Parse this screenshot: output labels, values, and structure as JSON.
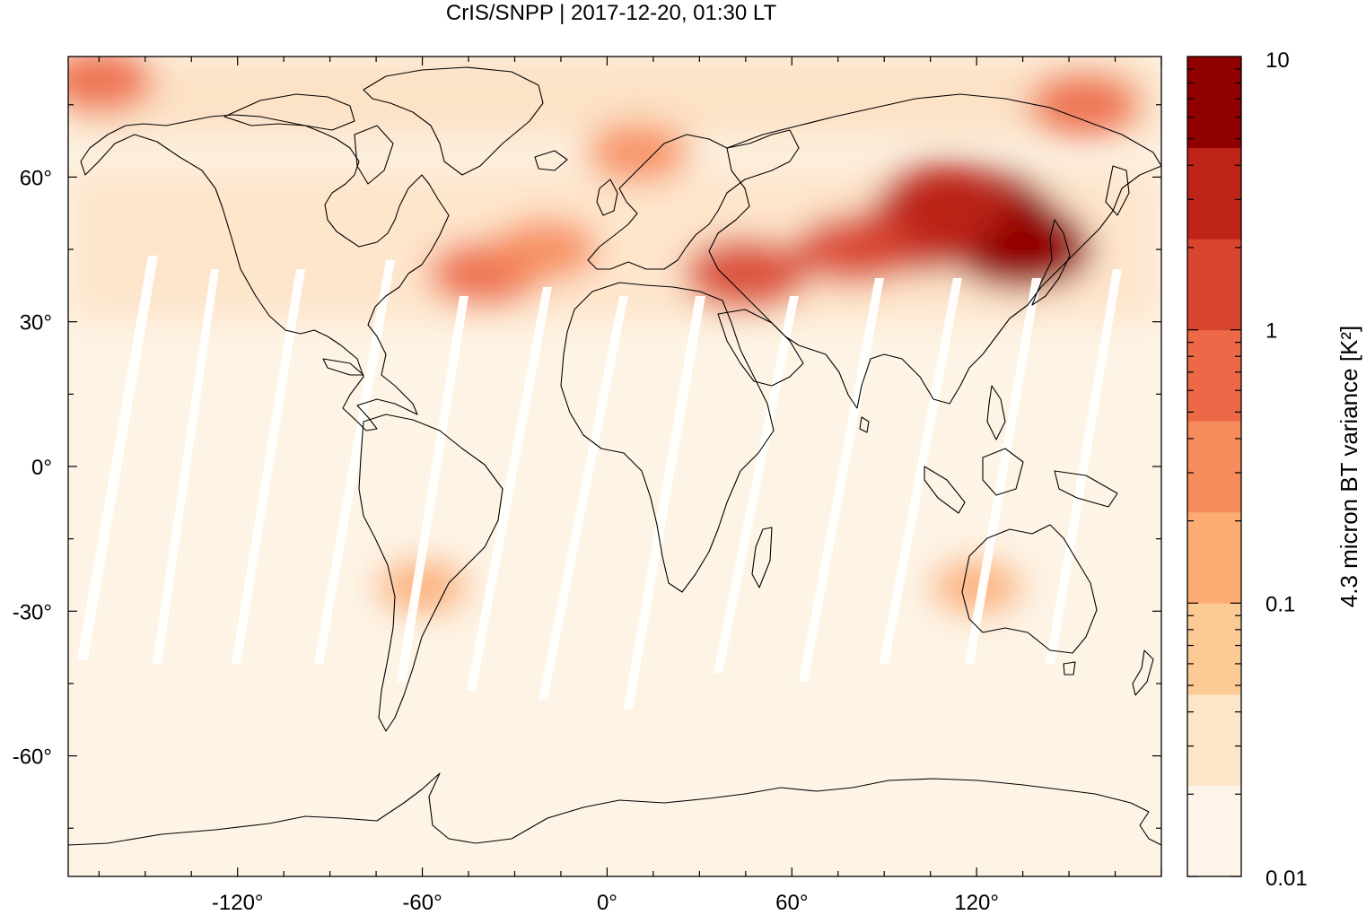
{
  "title": "CrIS/SNPP | 2017-12-20, 01:30 LT",
  "map": {
    "projection": "equirectangular",
    "lon_range": [
      -175,
      180
    ],
    "lat_range": [
      -85,
      85
    ],
    "lon_ticks": [
      {
        "value": -120,
        "label": "-120°"
      },
      {
        "value": -60,
        "label": "-60°"
      },
      {
        "value": 0,
        "label": "0°"
      },
      {
        "value": 60,
        "label": "60°"
      },
      {
        "value": 120,
        "label": "120°"
      }
    ],
    "lat_ticks": [
      {
        "value": 60,
        "label": "60°"
      },
      {
        "value": 30,
        "label": "30°"
      },
      {
        "value": 0,
        "label": "0°"
      },
      {
        "value": -30,
        "label": "-30°"
      },
      {
        "value": -60,
        "label": "-60°"
      }
    ],
    "background_color": "#fdf4e6",
    "coastline_color": "#000000"
  },
  "colorbar": {
    "label": "4.3 micron BT variance [K²]",
    "scale": "log",
    "range": [
      0.01,
      10
    ],
    "tick_labels": [
      {
        "value": 10,
        "label": "10"
      },
      {
        "value": 1,
        "label": "1"
      },
      {
        "value": 0.1,
        "label": "0.1"
      },
      {
        "value": 0.01,
        "label": "0.01"
      }
    ],
    "colors": [
      "#fef4e8",
      "#fde5c7",
      "#fcca95",
      "#fcab73",
      "#f68b5b",
      "#ec6846",
      "#d8452f",
      "#bd2417",
      "#910000"
    ]
  },
  "chart_data": {
    "type": "heatmap",
    "title": "CrIS/SNPP | 2017-12-20, 01:30 LT",
    "xlabel": "",
    "ylabel": "",
    "colorbar_label": "4.3 micron BT variance [K²]",
    "xlim": [
      -175,
      180
    ],
    "ylim": [
      -85,
      85
    ],
    "zlim": [
      0.01,
      10
    ],
    "z_scale": "log",
    "features": [
      {
        "lon": 120,
        "lat": 53,
        "value": 8.0
      },
      {
        "lon": 130,
        "lat": 48,
        "value": 6.0
      },
      {
        "lon": 135,
        "lat": 45,
        "value": 5.0
      },
      {
        "lon": 100,
        "lat": 48,
        "value": 2.5
      },
      {
        "lon": 110,
        "lat": 55,
        "value": 3.0
      },
      {
        "lon": 45,
        "lat": 40,
        "value": 1.5
      },
      {
        "lon": 80,
        "lat": 45,
        "value": 1.0
      },
      {
        "lon": -40,
        "lat": 40,
        "value": 0.6
      },
      {
        "lon": -165,
        "lat": 80,
        "value": 0.5
      },
      {
        "lon": 155,
        "lat": 75,
        "value": 0.6
      },
      {
        "lon": -20,
        "lat": 45,
        "value": 0.4
      },
      {
        "lon": 10,
        "lat": 65,
        "value": 0.3
      },
      {
        "lon": -60,
        "lat": -25,
        "value": 0.12
      },
      {
        "lon": 120,
        "lat": -25,
        "value": 0.12
      }
    ]
  }
}
